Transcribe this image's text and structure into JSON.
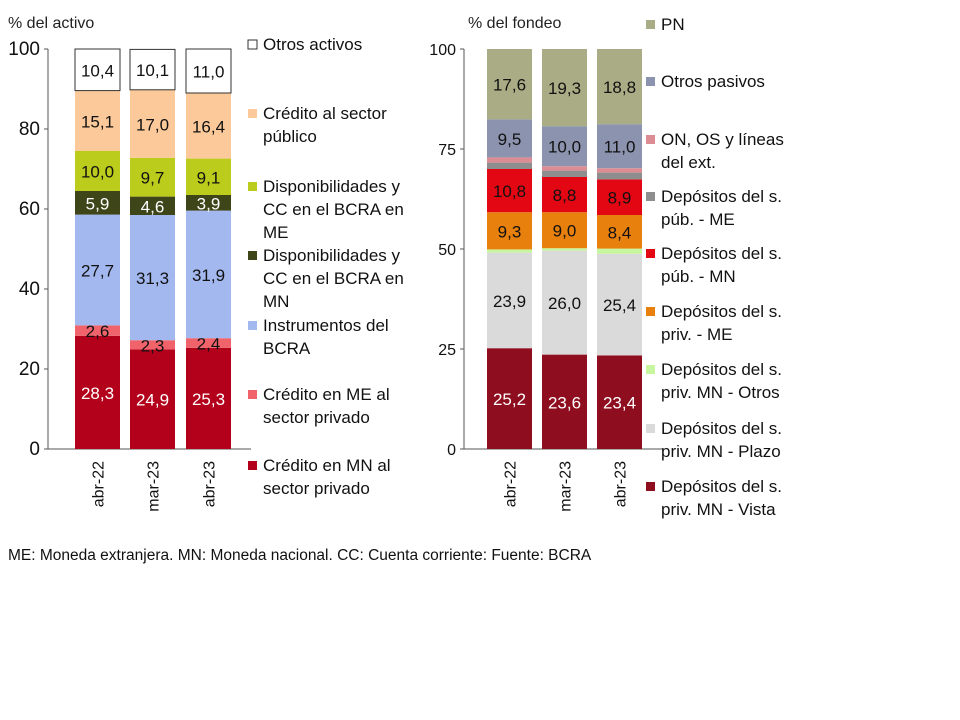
{
  "chart_data": [
    {
      "type": "bar",
      "stacked": true,
      "ylabel": "% del activo",
      "ylim": [
        0,
        100
      ],
      "yticks": [
        "0",
        "20",
        "40",
        "60",
        "80",
        "100"
      ],
      "categories": [
        "abr-22",
        "mar-23",
        "abr-23"
      ],
      "legend_position": "right",
      "series": [
        {
          "name": "Crédito en MN al sector privado",
          "color": "#B3001B",
          "label_color": "#ffffff",
          "values": [
            28.3,
            24.9,
            25.3
          ],
          "labels": [
            "28,3",
            "24,9",
            "25,3"
          ]
        },
        {
          "name": "Crédito en ME al sector privado",
          "color": "#F0636B",
          "label_color": "#111111",
          "values": [
            2.6,
            2.3,
            2.4
          ],
          "labels": [
            "2,6",
            "2,3",
            "2,4"
          ]
        },
        {
          "name": "Instrumentos del BCRA",
          "color": "#A3B8EE",
          "label_color": "#111111",
          "values": [
            27.7,
            31.3,
            31.9
          ],
          "labels": [
            "27,7",
            "31,3",
            "31,9"
          ]
        },
        {
          "name": "Disponibilidades y CC en el BCRA en MN",
          "color": "#3D4519",
          "label_color": "#ffffff",
          "values": [
            5.9,
            4.6,
            3.9
          ],
          "labels": [
            "5,9",
            "4,6",
            "3,9"
          ]
        },
        {
          "name": "Disponibilidades y CC en el BCRA en ME",
          "color": "#BCCC1C",
          "label_color": "#111111",
          "values": [
            10.0,
            9.7,
            9.1
          ],
          "labels": [
            "10,0",
            "9,7",
            "9,1"
          ]
        },
        {
          "name": "Crédito al sector público",
          "color": "#FBC99A",
          "label_color": "#111111",
          "values": [
            15.1,
            17.0,
            16.4
          ],
          "labels": [
            "15,1",
            "17,0",
            "16,4"
          ]
        },
        {
          "name": "Otros activos",
          "color": "#FFFFFF",
          "label_color": "#111111",
          "values": [
            10.4,
            10.1,
            11.0
          ],
          "labels": [
            "10,4",
            "10,1",
            "11,0"
          ]
        }
      ]
    },
    {
      "type": "bar",
      "stacked": true,
      "ylabel": "% del fondeo",
      "ylim": [
        0,
        100
      ],
      "yticks": [
        "0",
        "25",
        "50",
        "75",
        "100"
      ],
      "categories": [
        "abr-22",
        "mar-23",
        "abr-23"
      ],
      "legend_position": "right",
      "series": [
        {
          "name": "Depósitos del s. priv. MN - Vista",
          "color": "#8E0D1E",
          "label_color": "#ffffff",
          "values": [
            25.2,
            23.6,
            23.4
          ],
          "labels": [
            "25,2",
            "23,6",
            "23,4"
          ]
        },
        {
          "name": "Depósitos del s. priv. MN - Plazo",
          "color": "#DADADA",
          "label_color": "#111111",
          "values": [
            23.9,
            26.0,
            25.4
          ],
          "labels": [
            "23,9",
            "26,0",
            "25,4"
          ]
        },
        {
          "name": "Depósitos del s. priv. MN - Otros",
          "color": "#C8F59F",
          "label_color": "#111111",
          "values": [
            0.8,
            0.6,
            1.3
          ],
          "labels": [
            "",
            "",
            ""
          ]
        },
        {
          "name": "Depósitos del s. priv. - ME",
          "color": "#E8800E",
          "label_color": "#111111",
          "values": [
            9.3,
            9.0,
            8.4
          ],
          "labels": [
            "9,3",
            "9,0",
            "8,4"
          ]
        },
        {
          "name": "Depósitos del s. púb. - MN",
          "color": "#E30613",
          "label_color": "#111111",
          "values": [
            10.8,
            8.8,
            8.9
          ],
          "labels": [
            "10,8",
            "8,8",
            "8,9"
          ]
        },
        {
          "name": "Depósitos del s. púb. - ME",
          "color": "#8E8E8E",
          "label_color": "#111111",
          "values": [
            1.6,
            1.6,
            1.7
          ],
          "labels": [
            "",
            "",
            ""
          ]
        },
        {
          "name": "ON, OS y líneas del ext.",
          "color": "#DB8D93",
          "label_color": "#111111",
          "values": [
            1.3,
            1.1,
            1.1
          ],
          "labels": [
            "",
            "",
            ""
          ]
        },
        {
          "name": "Otros pasivos",
          "color": "#8C93AE",
          "label_color": "#111111",
          "values": [
            9.5,
            10.0,
            11.0
          ],
          "labels": [
            "9,5",
            "10,0",
            "11,0"
          ]
        },
        {
          "name": "PN",
          "color": "#A9AC84",
          "label_color": "#111111",
          "values": [
            17.6,
            19.3,
            18.8
          ],
          "labels": [
            "17,6",
            "19,3",
            "18,8"
          ]
        }
      ]
    }
  ],
  "footnote": "ME: Moneda extranjera. MN: Moneda nacional. CC: Cuenta corriente: Fuente: BCRA"
}
